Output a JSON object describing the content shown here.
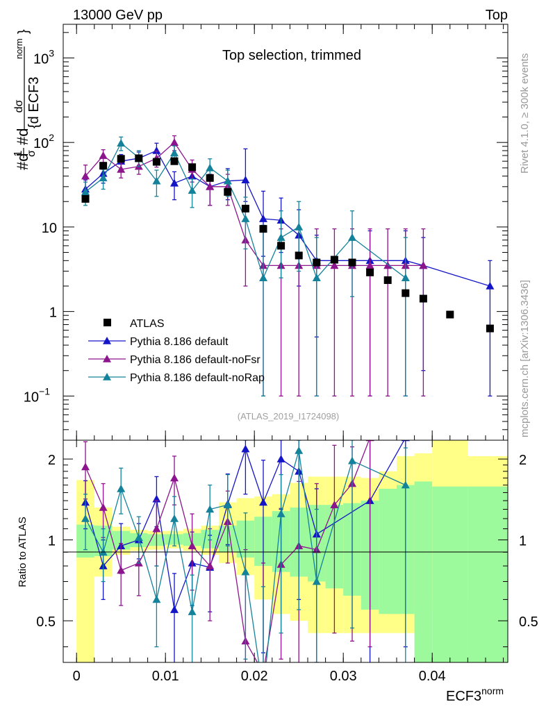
{
  "header": {
    "left": "13000 GeV pp",
    "right": "Top"
  },
  "chart_data": {
    "type": "scatter",
    "title": "Top selection, trimmed",
    "analysis_id": "(ATLAS_2019_I1724098)",
    "side_text_top": "Rivet 4.1.0, ≥ 300k events",
    "side_text_bottom": "mcplots.cern.ch [arXiv:1306.3436]",
    "ylabel": "#d¹/σ #d dσ / {d ECF3 norm}",
    "ylabel_parts": {
      "one": "1",
      "sigma": "σ",
      "hash_d": "#d",
      "d_sigma": "dσ",
      "denominator": "{d ECF3",
      "norm": "norm",
      "brace": "}"
    },
    "xlabel": "ECF3",
    "xlabel_sup": "norm",
    "ratio_ylabel": "Ratio to ATLAS",
    "xlim": [
      -0.0015,
      0.0485
    ],
    "ylim": [
      0.03,
      2500
    ],
    "yscale": "log",
    "ratio_ylim": [
      0.35,
      2.35
    ],
    "x_ticks": [
      {
        "value": 0,
        "label": "0"
      },
      {
        "value": 0.01,
        "label": "0.01"
      },
      {
        "value": 0.02,
        "label": "0.02"
      },
      {
        "value": 0.03,
        "label": "0.03"
      },
      {
        "value": 0.04,
        "label": "0.04"
      }
    ],
    "y_ticks": [
      {
        "value": 1000,
        "base": "10",
        "exp": "3"
      },
      {
        "value": 100,
        "base": "10",
        "exp": "2"
      },
      {
        "value": 10,
        "base": "10",
        "exp": ""
      },
      {
        "value": 1,
        "base": "1",
        "exp": ""
      },
      {
        "value": 0.1,
        "base": "10",
        "exp": "−1"
      }
    ],
    "ratio_ticks": [
      {
        "value": 2,
        "label": "2"
      },
      {
        "value": 1,
        "label": "1"
      },
      {
        "value": 0.5,
        "label": "0.5"
      }
    ],
    "legend": [
      {
        "name": "ATLAS",
        "color": "#000000",
        "marker": "square"
      },
      {
        "name": "Pythia 8.186 default",
        "color": "#1515c8",
        "marker": "triangle"
      },
      {
        "name": "Pythia 8.186 default-noFsr",
        "color": "#8c148c",
        "marker": "triangle"
      },
      {
        "name": "Pythia 8.186 default-noRap",
        "color": "#14829a",
        "marker": "triangle"
      }
    ],
    "data": {
      "x": [
        0.001,
        0.003,
        0.005,
        0.007,
        0.009,
        0.011,
        0.013,
        0.015,
        0.017,
        0.019,
        0.021,
        0.023,
        0.025,
        0.027,
        0.029,
        0.031,
        0.033,
        0.035,
        0.037,
        0.039,
        0.042,
        0.0465
      ],
      "y": [
        21.5,
        53,
        64,
        65,
        59,
        60,
        51,
        38,
        26,
        16.5,
        9.5,
        6,
        4.6,
        3.8,
        4.1,
        3.8,
        2.9,
        2.35,
        1.65,
        1.42,
        0.92,
        0.63
      ]
    },
    "band": {
      "edges": [
        0.0,
        0.002,
        0.004,
        0.006,
        0.008,
        0.01,
        0.012,
        0.014,
        0.016,
        0.018,
        0.02,
        0.022,
        0.024,
        0.026,
        0.028,
        0.03,
        0.032,
        0.034,
        0.036,
        0.038,
        0.04,
        0.044,
        0.049
      ],
      "yellow_lo": [
        0.35,
        0.73,
        0.88,
        0.91,
        0.92,
        0.93,
        0.91,
        0.88,
        0.82,
        0.74,
        0.6,
        0.53,
        0.5,
        0.45,
        0.45,
        0.45,
        0.45,
        0.45,
        0.45,
        0.55,
        0.6,
        0.6
      ],
      "yellow_hi": [
        1.67,
        1.32,
        1.12,
        1.09,
        1.08,
        1.08,
        1.1,
        1.13,
        1.38,
        1.43,
        1.45,
        1.48,
        1.63,
        1.72,
        1.72,
        1.72,
        1.7,
        1.8,
        2.05,
        2.1,
        2.35,
        2.05
      ],
      "green_lo": [
        0.86,
        0.87,
        0.92,
        0.94,
        0.95,
        0.96,
        0.95,
        0.93,
        0.9,
        0.86,
        0.8,
        0.76,
        0.73,
        0.7,
        0.66,
        0.62,
        0.55,
        0.53,
        0.53,
        0.35,
        0.35,
        0.35
      ],
      "green_hi": [
        1.14,
        1.13,
        1.08,
        1.06,
        1.05,
        1.05,
        1.06,
        1.09,
        1.13,
        1.18,
        1.22,
        1.28,
        1.32,
        1.35,
        1.35,
        1.37,
        1.4,
        1.55,
        1.6,
        1.65,
        1.58,
        1.58
      ]
    },
    "series": [
      {
        "name": "Pythia 8.186 default",
        "color": "#1515c8",
        "x": [
          0.001,
          0.003,
          0.005,
          0.007,
          0.009,
          0.011,
          0.013,
          0.015,
          0.017,
          0.019,
          0.021,
          0.023,
          0.025,
          0.027,
          0.033,
          0.037,
          0.039,
          0.0465
        ],
        "y": [
          28,
          43,
          60,
          65,
          80,
          33,
          40,
          30,
          35,
          36,
          12.5,
          12,
          8,
          4,
          4,
          4,
          3.5,
          2
        ],
        "yerr_lo": [
          8,
          10,
          12,
          12,
          18,
          12,
          14,
          12,
          14,
          16,
          8,
          7,
          6,
          3.5,
          3.9,
          3.9,
          3.3,
          1.9
        ],
        "yerr_hi": [
          8,
          10,
          12,
          12,
          18,
          12,
          14,
          12,
          14,
          48,
          14,
          10,
          8,
          4,
          5,
          5,
          4,
          2
        ],
        "ratio": [
          1.38,
          0.8,
          0.95,
          1,
          1.42,
          0.55,
          0.82,
          0.79,
          1.36,
          2.18,
          1.38,
          2.0,
          1.8,
          1.05,
          1.4,
          2.4
        ],
        "ratio_err_lo": [
          0.28,
          0.2,
          0.2,
          0.15,
          0.3,
          0.2,
          0.25,
          0.25,
          0.4,
          0.7,
          1.0,
          0.7,
          1.2,
          0.7,
          1.05,
          2.0
        ],
        "ratio_err_hi": [
          0.28,
          0.2,
          0.2,
          0.15,
          0.3,
          0.2,
          0.25,
          0.25,
          0.4,
          0.5,
          0.6,
          0.5,
          0.6,
          0.5,
          1.0,
          0.5
        ]
      },
      {
        "name": "Pythia 8.186 default-noFsr",
        "color": "#8c148c",
        "x": [
          0.001,
          0.003,
          0.005,
          0.007,
          0.009,
          0.011,
          0.013,
          0.015,
          0.017,
          0.019,
          0.021,
          0.023,
          0.025,
          0.027,
          0.029,
          0.031,
          0.033,
          0.035,
          0.037,
          0.039
        ],
        "y": [
          40,
          70,
          48,
          52,
          65,
          100,
          48,
          30,
          30,
          7,
          3.5,
          3.5,
          3.5,
          3.5,
          3.5,
          3.5,
          3.5,
          3.5,
          3.5,
          3.5
        ],
        "yerr_lo": [
          14,
          12,
          10,
          10,
          14,
          20,
          14,
          12,
          12,
          5,
          3.4,
          3.4,
          3.4,
          3.4,
          3.4,
          3.4,
          3.4,
          3.4,
          3.4,
          3.4
        ],
        "yerr_hi": [
          14,
          12,
          10,
          10,
          14,
          20,
          14,
          12,
          12,
          10,
          6,
          6,
          6,
          6,
          6,
          6,
          6,
          6,
          6,
          6
        ],
        "ratio": [
          1.87,
          1.32,
          0.77,
          0.82,
          1.1,
          1.7,
          0.95,
          0.8,
          1.17,
          0.42,
          0.32,
          0.81,
          0.95,
          0.92,
          1.35,
          1.62,
          2.4
        ],
        "ratio_err_lo": [
          0.45,
          0.3,
          0.2,
          0.2,
          0.3,
          0.35,
          0.3,
          0.3,
          0.35,
          0.3,
          0.3,
          0.45,
          0.6,
          0.6,
          0.9,
          1.2,
          2.0
        ],
        "ratio_err_hi": [
          0.45,
          0.3,
          0.2,
          0.2,
          0.3,
          0.35,
          0.3,
          0.3,
          0.35,
          0.5,
          0.5,
          0.5,
          0.7,
          0.7,
          0.9,
          0.6,
          0.5
        ]
      },
      {
        "name": "Pythia 8.186 default-noRap",
        "color": "#14829a",
        "x": [
          0.001,
          0.003,
          0.005,
          0.007,
          0.009,
          0.011,
          0.013,
          0.015,
          0.017,
          0.019,
          0.021,
          0.023,
          0.025,
          0.027,
          0.031,
          0.037
        ],
        "y": [
          26,
          38,
          98,
          66,
          35,
          75,
          27,
          50,
          35,
          12.5,
          2.5,
          7.5,
          10,
          2.5,
          7.5,
          2.5
        ],
        "yerr_lo": [
          8,
          10,
          18,
          14,
          12,
          16,
          10,
          14,
          12,
          7,
          2.4,
          5,
          7,
          2.4,
          6,
          2.4
        ],
        "yerr_hi": [
          8,
          10,
          18,
          14,
          12,
          16,
          10,
          14,
          12,
          10,
          8,
          8,
          10,
          5,
          8,
          5
        ],
        "ratio": [
          1.2,
          0.9,
          1.55,
          1.02,
          0.6,
          1.2,
          0.54,
          1.3,
          1.35,
          0.76,
          0.27,
          1.25,
          2.15,
          0.7,
          1.97,
          1.6
        ],
        "ratio_err_lo": [
          0.28,
          0.2,
          0.3,
          0.2,
          0.2,
          0.25,
          0.2,
          0.3,
          0.4,
          0.4,
          0.27,
          0.8,
          1.6,
          0.65,
          1.5,
          1.3
        ],
        "ratio_err_hi": [
          0.28,
          0.2,
          0.3,
          0.2,
          0.2,
          0.25,
          0.2,
          0.3,
          0.4,
          0.5,
          0.4,
          0.5,
          0.4,
          0.6,
          0.6,
          0.6
        ]
      }
    ]
  }
}
